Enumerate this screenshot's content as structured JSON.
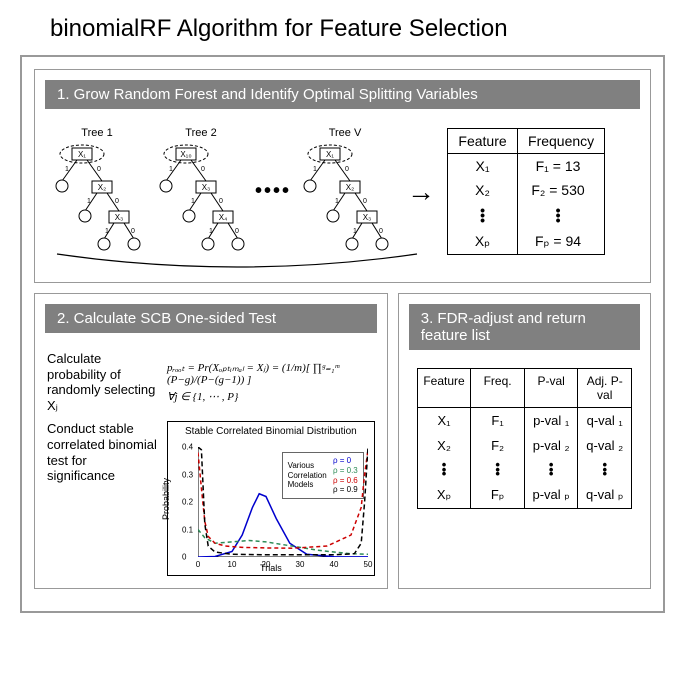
{
  "title": "binomialRF Algorithm for Feature Selection",
  "panel1": {
    "header": "1. Grow Random Forest and Identify Optimal Splitting Variables",
    "trees": [
      {
        "label": "Tree 1",
        "root": "X₁",
        "n2": "X₂",
        "n3": "X₃"
      },
      {
        "label": "Tree 2",
        "root": "X₁₀",
        "n2": "X₃",
        "n3": "X₄"
      },
      {
        "label": "Tree V",
        "root": "X₁",
        "n2": "X₂",
        "n3": "X₃"
      }
    ],
    "ellipsis": "••••",
    "arrow": "→",
    "table": {
      "headers": [
        "Feature",
        "Frequency"
      ],
      "rows": [
        [
          "X₁",
          "F₁ = 13"
        ],
        [
          "X₂",
          "F₂ = 530"
        ]
      ],
      "lastRow": [
        "Xₚ",
        "Fₚ = 94"
      ]
    },
    "edge_labels": {
      "one": "1",
      "zero": "0"
    }
  },
  "panel2": {
    "header": "2. Calculate SCB One-sided Test",
    "text1": "Calculate probability of randomly selecting Xⱼ",
    "formula1": "pᵣₒₒₜ = Pr(Xₒₚₜᵢₘₐₗ = Xⱼ) = (1/m)[ ∏ᵍ₌₁ᵐ (P−g)/(P−(g−1)) ]",
    "formula2": "∀j ∈ {1, ⋯ , P}",
    "text2": "Conduct stable correlated binomial test for significance",
    "chart": {
      "title": "Stable Correlated Binomial Distribution",
      "ylabel": "Probability",
      "xlabel": "Trials",
      "legend_text": "Various Correlation Models",
      "legend_items": [
        {
          "label": "ρ = 0",
          "color": "#0000cd"
        },
        {
          "label": "ρ = 0.3",
          "color": "#2e8b57"
        },
        {
          "label": "ρ = 0.6",
          "color": "#cc0000"
        },
        {
          "label": "ρ = 0.9",
          "color": "#000000"
        }
      ],
      "ylim": [
        0,
        0.4
      ],
      "yticks": [
        0,
        0.1,
        0.2,
        0.3,
        0.4
      ],
      "xlim": [
        0,
        50
      ],
      "xticks": [
        0,
        10,
        20,
        30,
        40,
        50
      ],
      "series": [
        {
          "color": "#0000cd",
          "dash": "none",
          "points": [
            [
              0,
              0
            ],
            [
              5,
              0.002
            ],
            [
              10,
              0.02
            ],
            [
              13,
              0.08
            ],
            [
              16,
              0.18
            ],
            [
              18,
              0.23
            ],
            [
              20,
              0.22
            ],
            [
              23,
              0.14
            ],
            [
              27,
              0.05
            ],
            [
              32,
              0.01
            ],
            [
              40,
              0.001
            ],
            [
              50,
              0.0005
            ]
          ]
        },
        {
          "color": "#2e8b57",
          "dash": "4,3",
          "points": [
            [
              0,
              0.1
            ],
            [
              2,
              0.07
            ],
            [
              5,
              0.05
            ],
            [
              10,
              0.055
            ],
            [
              15,
              0.06
            ],
            [
              20,
              0.055
            ],
            [
              25,
              0.045
            ],
            [
              30,
              0.035
            ],
            [
              35,
              0.025
            ],
            [
              40,
              0.018
            ],
            [
              45,
              0.012
            ],
            [
              50,
              0.01
            ]
          ]
        },
        {
          "color": "#cc0000",
          "dash": "4,3",
          "points": [
            [
              0,
              0.38
            ],
            [
              1,
              0.25
            ],
            [
              2,
              0.13
            ],
            [
              3,
              0.075
            ],
            [
              5,
              0.05
            ],
            [
              8,
              0.04
            ],
            [
              13,
              0.035
            ],
            [
              20,
              0.033
            ],
            [
              28,
              0.032
            ],
            [
              38,
              0.04
            ],
            [
              45,
              0.08
            ],
            [
              48,
              0.18
            ],
            [
              49,
              0.3
            ],
            [
              50,
              0.39
            ]
          ]
        },
        {
          "color": "#000000",
          "dash": "5,3",
          "points": [
            [
              0,
              0.4
            ],
            [
              1,
              0.39
            ],
            [
              2,
              0.12
            ],
            [
              3,
              0.04
            ],
            [
              5,
              0.018
            ],
            [
              10,
              0.01
            ],
            [
              20,
              0.008
            ],
            [
              30,
              0.008
            ],
            [
              40,
              0.008
            ],
            [
              46,
              0.012
            ],
            [
              48,
              0.05
            ],
            [
              49,
              0.2
            ],
            [
              50,
              0.4
            ]
          ]
        }
      ],
      "colors": {
        "axis": "#000000"
      }
    }
  },
  "panel3": {
    "header": "3. FDR-adjust and return feature list",
    "table": {
      "headers": [
        "Feature",
        "Freq.",
        "P-val",
        "Adj. P-val"
      ],
      "rows": [
        [
          "X₁",
          "F₁",
          "p-val ₁",
          "q-val ₁"
        ],
        [
          "X₂",
          "F₂",
          "p-val ₂",
          "q-val ₂"
        ]
      ],
      "lastRow": [
        "Xₚ",
        "Fₚ",
        "p-val ₚ",
        "q-val ₚ"
      ]
    }
  },
  "style": {
    "header_bg": "#808080",
    "header_fg": "#ffffff",
    "border": "#999999",
    "text": "#000000"
  }
}
